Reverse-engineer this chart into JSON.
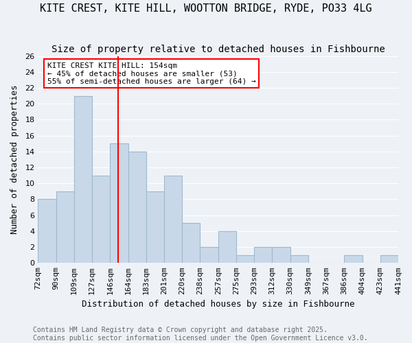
{
  "title": "KITE CREST, KITE HILL, WOOTTON BRIDGE, RYDE, PO33 4LG",
  "subtitle": "Size of property relative to detached houses in Fishbourne",
  "xlabel": "Distribution of detached houses by size in Fishbourne",
  "ylabel": "Number of detached properties",
  "bar_values": [
    8,
    9,
    21,
    11,
    15,
    14,
    9,
    11,
    5,
    2,
    4,
    1,
    2,
    2,
    1,
    0,
    0,
    1,
    0,
    1
  ],
  "xtick_labels": [
    "72sqm",
    "90sqm",
    "109sqm",
    "127sqm",
    "146sqm",
    "164sqm",
    "183sqm",
    "201sqm",
    "220sqm",
    "238sqm",
    "257sqm",
    "275sqm",
    "293sqm",
    "312sqm",
    "330sqm",
    "349sqm",
    "367sqm",
    "386sqm",
    "404sqm",
    "423sqm",
    "441sqm"
  ],
  "bar_color": "#c8d8e8",
  "bar_edgecolor": "#a0b8cc",
  "vline_color": "red",
  "vline_bin_low": 146,
  "vline_bin_high": 164,
  "vline_value": 154,
  "vline_bar_index": 4,
  "annotation_text": "KITE CREST KITE HILL: 154sqm\n← 45% of detached houses are smaller (53)\n55% of semi-detached houses are larger (64) →",
  "annotation_box_color": "white",
  "annotation_box_edgecolor": "red",
  "ylim": [
    0,
    26
  ],
  "yticks": [
    0,
    2,
    4,
    6,
    8,
    10,
    12,
    14,
    16,
    18,
    20,
    22,
    24,
    26
  ],
  "footer_text": "Contains HM Land Registry data © Crown copyright and database right 2025.\nContains public sector information licensed under the Open Government Licence v3.0.",
  "title_fontsize": 11,
  "subtitle_fontsize": 10,
  "axis_label_fontsize": 9,
  "tick_fontsize": 8,
  "annotation_fontsize": 8,
  "footer_fontsize": 7,
  "background_color": "#eef2f7"
}
